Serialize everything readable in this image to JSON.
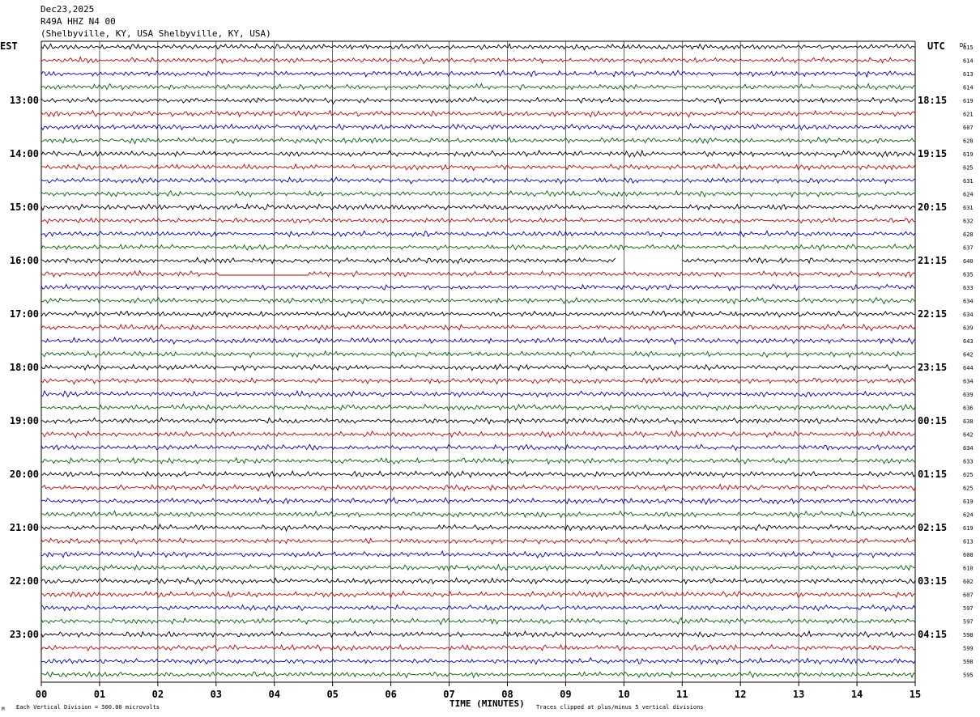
{
  "header": {
    "date": "Dec23,2025",
    "station": "R49A HHZ N4 00",
    "location": "(Shelbyville, KY, USA Shelbyville, KY, USA)"
  },
  "left_zone_label": "EST",
  "right_zone_label": "UTC",
  "dc_label": "DC",
  "xlabel": "TIME (MINUTES)",
  "footer_left": "Each Vertical Division =  500.00 microvolts",
  "footer_right": "Traces clipped at plus/minus 5 vertical divisions",
  "corner_mark": "M",
  "colors": {
    "trace_cycle": [
      "#000000",
      "#cc0000",
      "#0000cc",
      "#006600"
    ],
    "grid": "#000000"
  },
  "chart_data": {
    "type": "line",
    "xlim": [
      0,
      15
    ],
    "x_tick_labels": [
      "00",
      "01",
      "02",
      "03",
      "04",
      "05",
      "06",
      "07",
      "08",
      "09",
      "10",
      "11",
      "12",
      "13",
      "14",
      "15"
    ],
    "left_hour_labels": [
      "13:00",
      "14:00",
      "15:00",
      "16:00",
      "17:00",
      "18:00",
      "19:00",
      "20:00",
      "21:00",
      "22:00",
      "23:00"
    ],
    "right_hour_labels": [
      "18:15",
      "19:15",
      "20:15",
      "21:15",
      "22:15",
      "23:15",
      "00:15",
      "01:15",
      "02:15",
      "03:15",
      "04:15"
    ],
    "hour_label_trace_index": [
      4,
      8,
      12,
      16,
      20,
      24,
      28,
      32,
      36,
      40,
      44
    ],
    "dc_values": [
      "615",
      "614",
      "613",
      "614",
      "619",
      "621",
      "607",
      "628",
      "619",
      "625",
      "631",
      "624",
      "631",
      "632",
      "628",
      "637",
      "640",
      "635",
      "633",
      "634",
      "634",
      "639",
      "643",
      "642",
      "644",
      "634",
      "639",
      "636",
      "638",
      "642",
      "634",
      "633",
      "625",
      "625",
      "619",
      "624",
      "619",
      "613",
      "608",
      "610",
      "602",
      "607",
      "597",
      "597",
      "598",
      "599",
      "598",
      "595"
    ],
    "gaps": [
      {
        "trace_index": 16,
        "from_minute": 9.88,
        "to_minute": 11.0
      },
      {
        "trace_index": 17,
        "from_minute": 3.05,
        "to_minute": 4.6
      }
    ]
  }
}
